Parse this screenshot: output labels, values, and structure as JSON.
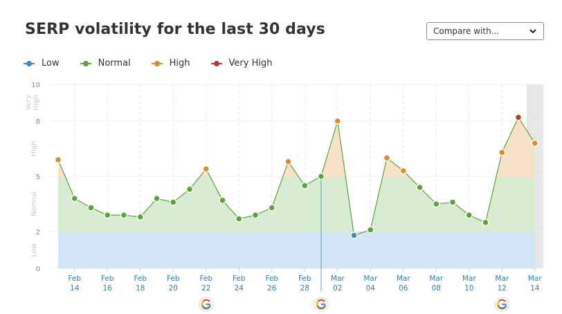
{
  "header": {
    "title": "SERP volatility for the last 30 days",
    "compare_label": "Compare with..."
  },
  "legend": [
    {
      "label": "Low",
      "color": "#3d8bc9"
    },
    {
      "label": "Normal",
      "color": "#5ba33b"
    },
    {
      "label": "High",
      "color": "#e08b2a"
    },
    {
      "label": "Very High",
      "color": "#c0392b"
    }
  ],
  "chart_data": {
    "type": "area",
    "title": "SERP volatility for the last 30 days",
    "ylim": [
      0,
      10
    ],
    "y_ticks": [
      0,
      2,
      5,
      8,
      10
    ],
    "zones": [
      {
        "label": "Low",
        "from": 0,
        "to": 2,
        "color": "#3d8bc9"
      },
      {
        "label": "Normal",
        "from": 2,
        "to": 5,
        "color": "#5ba33b"
      },
      {
        "label": "High",
        "from": 5,
        "to": 8,
        "color": "#e08b2a"
      },
      {
        "label": "Very High",
        "from": 8,
        "to": 10,
        "color": "#c0392b"
      }
    ],
    "x_tick_labels": [
      [
        "Feb",
        "14"
      ],
      [
        "Feb",
        "16"
      ],
      [
        "Feb",
        "18"
      ],
      [
        "Feb",
        "20"
      ],
      [
        "Feb",
        "22"
      ],
      [
        "Feb",
        "24"
      ],
      [
        "Feb",
        "26"
      ],
      [
        "Feb",
        "28"
      ],
      [
        "Mar",
        "02"
      ],
      [
        "Mar",
        "04"
      ],
      [
        "Mar",
        "06"
      ],
      [
        "Mar",
        "08"
      ],
      [
        "Mar",
        "10"
      ],
      [
        "Mar",
        "12"
      ],
      [
        "Mar",
        "14"
      ]
    ],
    "x": [
      "Feb 13",
      "Feb 14",
      "Feb 15",
      "Feb 16",
      "Feb 17",
      "Feb 18",
      "Feb 19",
      "Feb 20",
      "Feb 21",
      "Feb 22",
      "Feb 23",
      "Feb 24",
      "Feb 25",
      "Feb 26",
      "Feb 27",
      "Feb 28",
      "Mar 01",
      "Mar 02",
      "Mar 03",
      "Mar 04",
      "Mar 05",
      "Mar 06",
      "Mar 07",
      "Mar 08",
      "Mar 09",
      "Mar 10",
      "Mar 11",
      "Mar 12",
      "Mar 13",
      "Mar 14"
    ],
    "values": [
      5.9,
      3.8,
      3.3,
      2.9,
      2.9,
      2.8,
      3.8,
      3.6,
      4.3,
      5.4,
      3.7,
      2.7,
      2.9,
      3.3,
      5.8,
      4.5,
      5.0,
      8.0,
      1.8,
      2.1,
      6.0,
      5.3,
      4.4,
      3.5,
      3.6,
      2.9,
      2.5,
      6.3,
      8.2,
      6.8
    ],
    "google_updates": [
      "Feb 22",
      "Mar 01",
      "Mar 12"
    ],
    "highlight_last_day": true,
    "google_marker_label": "G"
  }
}
